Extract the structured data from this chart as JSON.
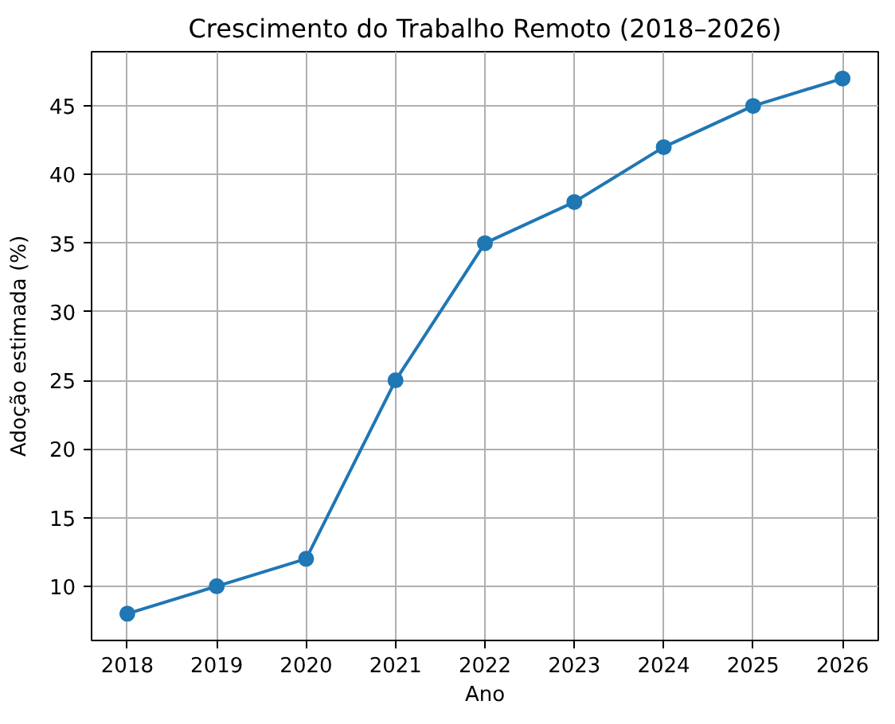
{
  "chart_data": {
    "type": "line",
    "title": "Crescimento do Trabalho Remoto (2018–2026)",
    "xlabel": "Ano",
    "ylabel": "Adoção estimada (%)",
    "x": [
      2018,
      2019,
      2020,
      2021,
      2022,
      2023,
      2024,
      2025,
      2026
    ],
    "values": [
      8,
      10,
      12,
      25,
      35,
      38,
      42,
      45,
      47
    ],
    "color": "#1f77b4",
    "xlim": [
      2017.6,
      2026.4
    ],
    "ylim": [
      6.05,
      48.95
    ],
    "xticks": [
      2018,
      2019,
      2020,
      2021,
      2022,
      2023,
      2024,
      2025,
      2026
    ],
    "yticks": [
      10,
      15,
      20,
      25,
      30,
      35,
      40,
      45
    ],
    "grid": true,
    "marker": "circle",
    "line_style": "solid"
  }
}
